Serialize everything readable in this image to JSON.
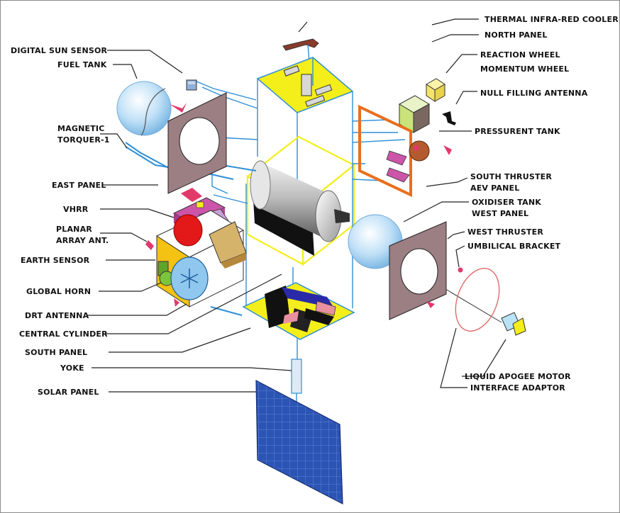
{
  "labels": {
    "thermal_cooler": "THERMAL INFRA-RED COOLER",
    "north_panel": "NORTH PANEL",
    "digital_sun_sensor": "DIGITAL SUN SENSOR",
    "fuel_tank": "FUEL TANK",
    "reaction_wheel": "REACTION WHEEL",
    "momentum_wheel": "MOMENTUM WHEEL",
    "null_filling_antenna": "NULL FILLING ANTENNA",
    "magnetic": "MAGNETIC",
    "torquer": "TORQUER-1",
    "pressurant_tank": "PRESSURENT TANK",
    "east_panel": "EAST PANEL",
    "south_thruster": "SOUTH THRUSTER",
    "aev_panel": "AEV PANEL",
    "vhrr": "VHRR",
    "oxidiser_tank": "OXIDISER TANK",
    "west_panel": "WEST PANEL",
    "planar": "PLANAR",
    "array_ant": "ARRAY ANT.",
    "west_thruster": "WEST THRUSTER",
    "umbilical_bracket": "UMBILICAL BRACKET",
    "earth_sensor": "EARTH SENSOR",
    "global_horn": "GLOBAL HORN",
    "drt_antenna": "DRT ANTENNA",
    "central_cylinder": "CENTRAL CYLINDER",
    "south_panel": "SOUTH PANEL",
    "yoke": "YOKE",
    "liquid_apogee_motor": "LIQUID APOGEE MOTOR",
    "solar_panel": "SOLAR PANEL",
    "interface_adaptor": "INTERFACE ADAPTOR"
  },
  "colors": {
    "panel_yellow": "#f4ee1a",
    "frame_blue": "#2f8fd8",
    "tank_blue": "#bfe0f7",
    "solar_blue": "#2b54b4",
    "thruster_pink": "#e2396b",
    "sensor_green": "#7cc43c",
    "panel_mauve": "#9c7f83",
    "aev_orange": "#e96f1c"
  }
}
